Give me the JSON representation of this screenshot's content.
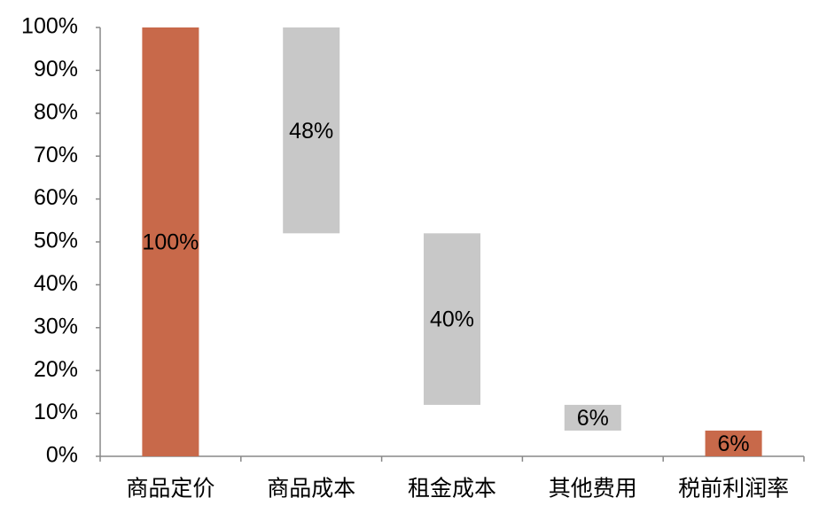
{
  "chart_data": {
    "type": "waterfall",
    "categories": [
      "商品定价",
      "商品成本",
      "租金成本",
      "其他费用",
      "税前利润率"
    ],
    "values": [
      100,
      48,
      40,
      6,
      6
    ],
    "value_labels": [
      "100%",
      "48%",
      "40%",
      "6%",
      "6%"
    ],
    "colors": [
      "#c8694a",
      "#c8c8c8",
      "#c8c8c8",
      "#c8c8c8",
      "#c8694a"
    ],
    "ylim": [
      0,
      100
    ],
    "yticks": [
      {
        "value": 0,
        "label": "0%"
      },
      {
        "value": 10,
        "label": "10%"
      },
      {
        "value": 20,
        "label": "20%"
      },
      {
        "value": 30,
        "label": "30%"
      },
      {
        "value": 40,
        "label": "40%"
      },
      {
        "value": 50,
        "label": "50%"
      },
      {
        "value": 60,
        "label": "60%"
      },
      {
        "value": 70,
        "label": "70%"
      },
      {
        "value": 80,
        "label": "80%"
      },
      {
        "value": 90,
        "label": "90%"
      },
      {
        "value": 100,
        "label": "100%"
      }
    ],
    "grid": false
  }
}
